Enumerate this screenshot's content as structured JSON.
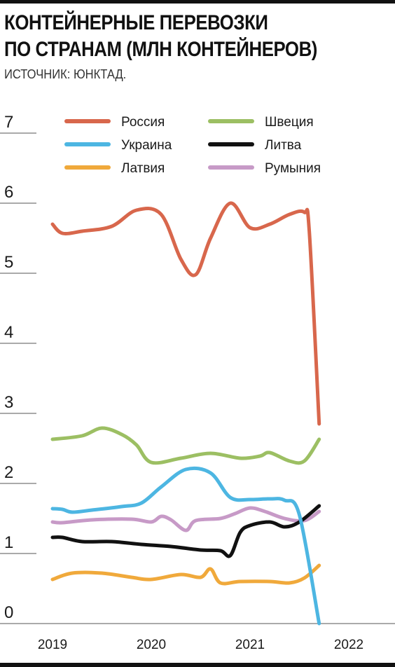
{
  "chart_data": {
    "type": "line",
    "title_lines": [
      "КОНТЕЙНЕРНЫЕ ПЕРЕВОЗКИ",
      "ПО СТРАНАМ (МЛН КОНТЕЙНЕРОВ)"
    ],
    "subtitle": "ИСТОЧНИК: ЮНКТАД.",
    "xlabel": "",
    "ylabel": "",
    "x_ticks": [
      "2019",
      "2020",
      "2021",
      "2022"
    ],
    "y_ticks": [
      "0",
      "1",
      "2",
      "3",
      "4",
      "5",
      "6",
      "7"
    ],
    "xlim": [
      2018.9,
      2022.6
    ],
    "ylim": [
      0,
      7
    ],
    "grid": false,
    "legend": "top",
    "series": [
      {
        "name": "Россия",
        "color": "#d8674c",
        "points": [
          [
            2019.0,
            5.7
          ],
          [
            2019.1,
            5.57
          ],
          [
            2019.3,
            5.6
          ],
          [
            2019.6,
            5.67
          ],
          [
            2019.85,
            5.9
          ],
          [
            2020.1,
            5.84
          ],
          [
            2020.3,
            5.2
          ],
          [
            2020.45,
            4.98
          ],
          [
            2020.6,
            5.5
          ],
          [
            2020.8,
            6.0
          ],
          [
            2021.0,
            5.65
          ],
          [
            2021.2,
            5.7
          ],
          [
            2021.4,
            5.84
          ],
          [
            2021.55,
            5.87
          ],
          [
            2021.6,
            5.6
          ],
          [
            2021.7,
            2.85
          ]
        ]
      },
      {
        "name": "Швеция",
        "color": "#9cbf63",
        "points": [
          [
            2019.0,
            2.63
          ],
          [
            2019.3,
            2.68
          ],
          [
            2019.5,
            2.79
          ],
          [
            2019.7,
            2.7
          ],
          [
            2019.85,
            2.55
          ],
          [
            2020.0,
            2.3
          ],
          [
            2020.3,
            2.36
          ],
          [
            2020.6,
            2.43
          ],
          [
            2020.9,
            2.36
          ],
          [
            2021.1,
            2.39
          ],
          [
            2021.2,
            2.44
          ],
          [
            2021.4,
            2.32
          ],
          [
            2021.55,
            2.32
          ],
          [
            2021.7,
            2.63
          ]
        ]
      },
      {
        "name": "Украина",
        "color": "#4db6e2",
        "points": [
          [
            2019.0,
            1.64
          ],
          [
            2019.1,
            1.63
          ],
          [
            2019.2,
            1.59
          ],
          [
            2019.4,
            1.62
          ],
          [
            2019.7,
            1.67
          ],
          [
            2019.9,
            1.72
          ],
          [
            2020.1,
            1.95
          ],
          [
            2020.35,
            2.2
          ],
          [
            2020.6,
            2.15
          ],
          [
            2020.8,
            1.8
          ],
          [
            2021.0,
            1.77
          ],
          [
            2021.2,
            1.78
          ],
          [
            2021.35,
            1.76
          ],
          [
            2021.5,
            1.55
          ],
          [
            2021.7,
            0.0
          ]
        ]
      },
      {
        "name": "Литва",
        "color": "#111111",
        "points": [
          [
            2019.0,
            1.23
          ],
          [
            2019.1,
            1.23
          ],
          [
            2019.3,
            1.17
          ],
          [
            2019.6,
            1.17
          ],
          [
            2019.9,
            1.13
          ],
          [
            2020.2,
            1.1
          ],
          [
            2020.5,
            1.05
          ],
          [
            2020.7,
            1.04
          ],
          [
            2020.8,
            0.97
          ],
          [
            2020.9,
            1.3
          ],
          [
            2021.0,
            1.4
          ],
          [
            2021.2,
            1.45
          ],
          [
            2021.35,
            1.38
          ],
          [
            2021.5,
            1.45
          ],
          [
            2021.7,
            1.68
          ]
        ]
      },
      {
        "name": "Латвия",
        "color": "#f0a93b",
        "points": [
          [
            2019.0,
            0.63
          ],
          [
            2019.2,
            0.72
          ],
          [
            2019.5,
            0.72
          ],
          [
            2019.8,
            0.66
          ],
          [
            2020.0,
            0.63
          ],
          [
            2020.3,
            0.7
          ],
          [
            2020.5,
            0.66
          ],
          [
            2020.6,
            0.78
          ],
          [
            2020.7,
            0.58
          ],
          [
            2020.9,
            0.6
          ],
          [
            2021.2,
            0.6
          ],
          [
            2021.4,
            0.58
          ],
          [
            2021.55,
            0.65
          ],
          [
            2021.7,
            0.83
          ]
        ]
      },
      {
        "name": "Румыния",
        "color": "#c79ac7",
        "points": [
          [
            2019.0,
            1.45
          ],
          [
            2019.1,
            1.44
          ],
          [
            2019.4,
            1.48
          ],
          [
            2019.8,
            1.49
          ],
          [
            2020.0,
            1.45
          ],
          [
            2020.1,
            1.53
          ],
          [
            2020.2,
            1.48
          ],
          [
            2020.35,
            1.33
          ],
          [
            2020.45,
            1.47
          ],
          [
            2020.7,
            1.5
          ],
          [
            2020.85,
            1.57
          ],
          [
            2021.0,
            1.65
          ],
          [
            2021.15,
            1.6
          ],
          [
            2021.35,
            1.5
          ],
          [
            2021.55,
            1.47
          ],
          [
            2021.7,
            1.6
          ]
        ]
      }
    ]
  }
}
